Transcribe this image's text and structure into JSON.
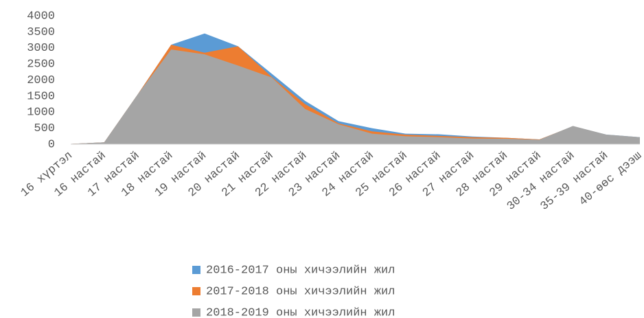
{
  "chart_data": {
    "type": "area",
    "categories": [
      "16 хүртэл",
      "16 настай",
      "17 настай",
      "18 настай",
      "19 настай",
      "20 настай",
      "21 настай",
      "22 настай",
      "23 настай",
      "24 настай",
      "25 настай",
      "26 настай",
      "27 настай",
      "28 настай",
      "29 настай",
      "30-34 настай",
      "35-39 настай",
      "40-өөс дээш"
    ],
    "series": [
      {
        "name": "2016-2017 оны хичээлийн жил",
        "color": "#5b9bd5",
        "values": [
          10,
          60,
          1550,
          3100,
          3450,
          3050,
          2200,
          1350,
          720,
          500,
          330,
          310,
          240,
          200,
          150,
          550,
          300,
          220
        ]
      },
      {
        "name": "2017-2018 оны хичээлийн жил",
        "color": "#ed7d31",
        "values": [
          10,
          60,
          1550,
          3100,
          2850,
          3050,
          2100,
          1250,
          650,
          400,
          300,
          260,
          220,
          200,
          150,
          560,
          290,
          210
        ]
      },
      {
        "name": "2018-2019 оны хичээлийн жил",
        "color": "#a5a5a5",
        "values": [
          10,
          60,
          1550,
          2950,
          2800,
          2450,
          2080,
          1100,
          620,
          330,
          250,
          220,
          180,
          170,
          140,
          570,
          300,
          220
        ]
      }
    ],
    "ylim": [
      0,
      4000
    ],
    "yticks": [
      0,
      500,
      1000,
      1500,
      2000,
      2500,
      3000,
      3500,
      4000
    ],
    "grid": false,
    "legend": "bottom"
  }
}
